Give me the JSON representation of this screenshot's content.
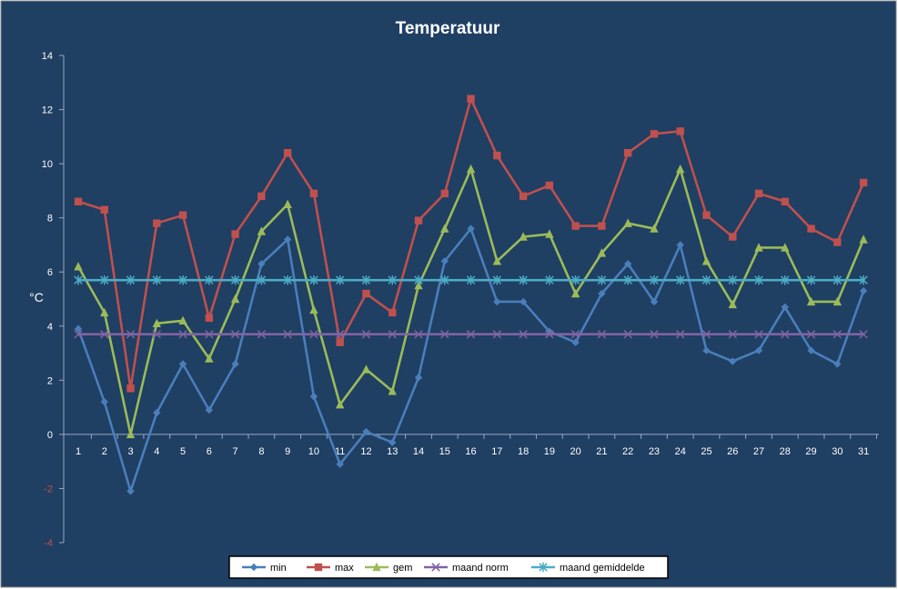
{
  "chart_data": {
    "type": "line",
    "title": "Temperatuur",
    "ylabel": "°C",
    "xlabel": "",
    "categories": [
      "1",
      "2",
      "3",
      "4",
      "5",
      "6",
      "7",
      "8",
      "9",
      "10",
      "11",
      "12",
      "13",
      "14",
      "15",
      "16",
      "17",
      "18",
      "19",
      "20",
      "21",
      "22",
      "23",
      "24",
      "25",
      "26",
      "27",
      "28",
      "29",
      "30",
      "31"
    ],
    "ylim": [
      -4,
      14
    ],
    "yticks": [
      "14",
      "12",
      "10",
      "8",
      "6",
      "4",
      "2",
      "0",
      "-2",
      "-4"
    ],
    "ytick_values": [
      14,
      12,
      10,
      8,
      6,
      4,
      2,
      0,
      -2,
      -4
    ],
    "grid": false,
    "legend_position": "bottom",
    "series": [
      {
        "name": "min",
        "color": "#4a7ebb",
        "marker": "diamond",
        "values": [
          3.9,
          1.2,
          -2.1,
          0.8,
          2.6,
          0.9,
          2.6,
          6.3,
          7.2,
          1.4,
          -1.1,
          0.1,
          -0.3,
          2.1,
          6.4,
          7.6,
          4.9,
          4.9,
          3.8,
          3.4,
          5.2,
          6.3,
          4.9,
          7.0,
          3.1,
          2.7,
          3.1,
          4.7,
          3.1,
          2.6,
          5.3
        ]
      },
      {
        "name": "max",
        "color": "#c0504d",
        "marker": "square",
        "values": [
          8.6,
          8.3,
          1.7,
          7.8,
          8.1,
          4.3,
          7.4,
          8.8,
          10.4,
          8.9,
          3.4,
          5.2,
          4.5,
          7.9,
          8.9,
          12.4,
          10.3,
          8.8,
          9.2,
          7.7,
          7.7,
          10.4,
          11.1,
          11.2,
          8.1,
          7.3,
          8.9,
          8.6,
          7.6,
          7.1,
          9.3
        ]
      },
      {
        "name": "gem",
        "color": "#9bbb59",
        "marker": "triangle",
        "values": [
          6.2,
          4.5,
          0.0,
          4.1,
          4.2,
          2.8,
          5.0,
          7.5,
          8.5,
          4.6,
          1.1,
          2.4,
          1.6,
          5.5,
          7.6,
          9.8,
          6.4,
          7.3,
          7.4,
          5.2,
          6.7,
          7.8,
          7.6,
          9.8,
          6.4,
          4.8,
          6.9,
          6.9,
          4.9,
          4.9,
          7.2
        ]
      },
      {
        "name": "maand norm",
        "color": "#8064a2",
        "marker": "x",
        "values": [
          3.7,
          3.7,
          3.7,
          3.7,
          3.7,
          3.7,
          3.7,
          3.7,
          3.7,
          3.7,
          3.7,
          3.7,
          3.7,
          3.7,
          3.7,
          3.7,
          3.7,
          3.7,
          3.7,
          3.7,
          3.7,
          3.7,
          3.7,
          3.7,
          3.7,
          3.7,
          3.7,
          3.7,
          3.7,
          3.7,
          3.7
        ]
      },
      {
        "name": "maand gemiddelde",
        "color": "#4bacc6",
        "marker": "star",
        "values": [
          5.7,
          5.7,
          5.7,
          5.7,
          5.7,
          5.7,
          5.7,
          5.7,
          5.7,
          5.7,
          5.7,
          5.7,
          5.7,
          5.7,
          5.7,
          5.7,
          5.7,
          5.7,
          5.7,
          5.7,
          5.7,
          5.7,
          5.7,
          5.7,
          5.7,
          5.7,
          5.7,
          5.7,
          5.7,
          5.7,
          5.7
        ]
      }
    ],
    "colors": {
      "background": "#1f3f63",
      "axis": "#9aaabf",
      "text": "#ffffff",
      "negative_tick": "#c0504d"
    }
  }
}
